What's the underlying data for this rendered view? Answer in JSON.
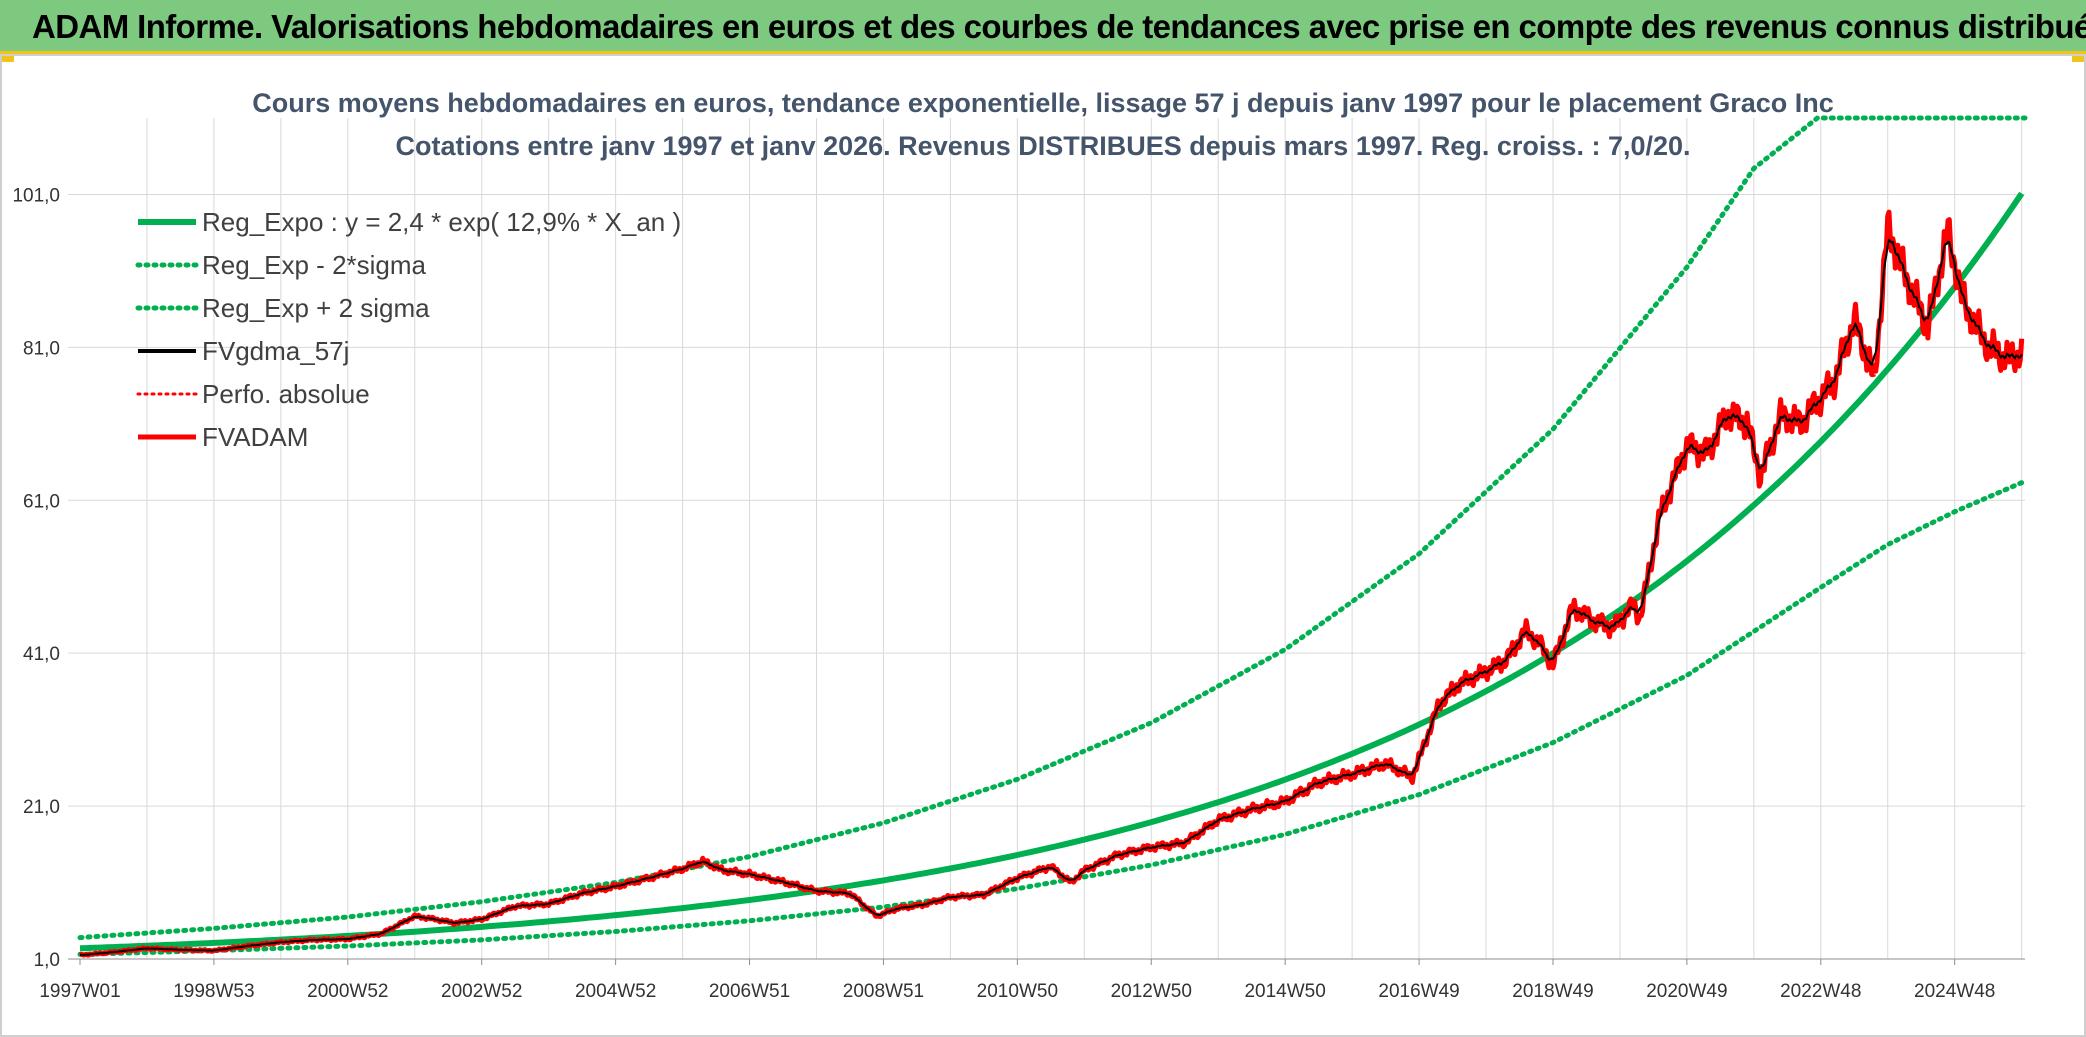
{
  "header": {
    "title": "ADAM Informe. Valorisations hebdomadaires en euros et des courbes de tendances avec prise en compte des revenus connus distribués"
  },
  "colors": {
    "header_bg": "#7dc97f",
    "accent_gold": "#f0c419",
    "trend_green": "#00b050",
    "smooth_black": "#000000",
    "price_red": "#ff0000",
    "title_text": "#44546a"
  },
  "chart_data": {
    "type": "line",
    "title": "Cours moyens hebdomadaires en euros, tendance exponentielle, lissage 57 j depuis janv 1997 pour le placement Graco Inc",
    "subtitle": "Cotations entre janv 1997 et janv 2026. Revenus DISTRIBUES depuis mars 1997. Reg. croiss. : 7,0/20.",
    "x_range": [
      1997.0,
      2026.05
    ],
    "ylim": [
      1.0,
      111.0
    ],
    "y_ticks": [
      1.0,
      21.0,
      41.0,
      61.0,
      81.0,
      101.0
    ],
    "y_tick_labels": [
      "1,0",
      "21,0",
      "41,0",
      "61,0",
      "81,0",
      "101,0"
    ],
    "x_ticks": [
      1997.0,
      1999.0,
      2001.0,
      2003.0,
      2005.0,
      2007.0,
      2009.0,
      2011.0,
      2013.0,
      2015.0,
      2017.0,
      2019.0,
      2021.0,
      2023.0,
      2025.0
    ],
    "x_tick_labels": [
      "1997W01",
      "1998W53",
      "2000W52",
      "2002W52",
      "2004W52",
      "2006W51",
      "2008W51",
      "2010W50",
      "2012W50",
      "2014W50",
      "2016W49",
      "2018W49",
      "2020W49",
      "2022W48",
      "2024W48"
    ],
    "legend": [
      {
        "name": "Reg_Expo : y = 2,4 * exp( 12,9% *  X_an )",
        "style": "solid-green"
      },
      {
        "name": "Reg_Exp - 2*sigma",
        "style": "dotted-green"
      },
      {
        "name": "Reg_Exp + 2 sigma",
        "style": "dotted-green"
      },
      {
        "name": "FVgdma_57j",
        "style": "solid-black"
      },
      {
        "name": "Perfo. absolue",
        "style": "dotted-red"
      },
      {
        "name": "FVADAM",
        "style": "solid-red"
      }
    ],
    "regression": {
      "a": 2.4,
      "b": 0.129,
      "t0": 1997.0,
      "x_end": 2026.05
    },
    "band_upper": {
      "x": [
        1997.0,
        1999.0,
        2001.0,
        2003.0,
        2005.0,
        2007.0,
        2009.0,
        2011.0,
        2013.0,
        2015.0,
        2017.0,
        2019.0,
        2021.0,
        2022.0,
        2022.95,
        2026.05
      ],
      "y": [
        3.8,
        5.0,
        6.5,
        8.5,
        11.0,
        14.4,
        18.8,
        24.5,
        31.9,
        41.5,
        54.0,
        70.3,
        91.5,
        104.4,
        111.0,
        111.0
      ]
    },
    "band_lower": {
      "x": [
        1997.0,
        1999.0,
        2001.0,
        2003.0,
        2005.0,
        2007.0,
        2009.0,
        2011.0,
        2013.0,
        2015.0,
        2017.0,
        2019.0,
        2021.0,
        2023.0,
        2024.0,
        2025.0,
        2026.05
      ],
      "y": [
        1.6,
        2.1,
        2.7,
        3.5,
        4.6,
        6.0,
        7.8,
        10.2,
        13.3,
        17.3,
        22.5,
        29.3,
        38.1,
        49.6,
        55.2,
        59.5,
        63.5
      ]
    },
    "series_fvadam": {
      "x": [
        1997.0,
        1997.5,
        1998.0,
        1998.5,
        1999.0,
        1999.5,
        2000.0,
        2000.5,
        2001.0,
        2001.5,
        2002.0,
        2002.3,
        2002.6,
        2003.0,
        2003.5,
        2004.0,
        2004.5,
        2005.0,
        2005.5,
        2006.0,
        2006.3,
        2006.6,
        2007.0,
        2007.5,
        2008.0,
        2008.5,
        2008.9,
        2009.2,
        2009.6,
        2010.0,
        2010.5,
        2011.0,
        2011.5,
        2011.8,
        2012.0,
        2012.5,
        2013.0,
        2013.5,
        2014.0,
        2014.5,
        2015.0,
        2015.5,
        2016.0,
        2016.5,
        2016.9,
        2017.3,
        2017.6,
        2018.0,
        2018.3,
        2018.6,
        2018.8,
        2019.0,
        2019.3,
        2019.6,
        2019.9,
        2020.2,
        2020.3,
        2020.6,
        2021.0,
        2021.3,
        2021.6,
        2021.9,
        2022.1,
        2022.4,
        2022.7,
        2022.9,
        2023.2,
        2023.5,
        2023.8,
        2024.0,
        2024.3,
        2024.6,
        2024.9,
        2025.1,
        2025.3,
        2025.5,
        2025.8,
        2026.0
      ],
      "y": [
        1.5,
        1.9,
        2.4,
        2.2,
        2.1,
        2.7,
        3.2,
        3.5,
        3.6,
        4.3,
        6.6,
        6.2,
        5.7,
        6.2,
        7.9,
        8.2,
        9.6,
        10.5,
        11.6,
        12.8,
        13.8,
        12.6,
        12.1,
        11.1,
        9.9,
        9.6,
        6.6,
        7.6,
        8.1,
        9.1,
        9.4,
        11.6,
        13.1,
        11.0,
        12.6,
        14.6,
        15.6,
        16.2,
        19.2,
        20.6,
        21.6,
        24.1,
        25.2,
        26.6,
        24.8,
        34.4,
        37.0,
        38.6,
        40.1,
        44.0,
        42.2,
        39.5,
        47.0,
        45.2,
        44.3,
        47.3,
        45.6,
        59.1,
        68.1,
        67.1,
        72.3,
        71.1,
        64.1,
        72.1,
        71.1,
        73.3,
        76.6,
        84.7,
        76.9,
        96.6,
        89.5,
        83.8,
        96.3,
        87.6,
        84.1,
        81.2,
        79.5,
        80.5
      ]
    }
  }
}
